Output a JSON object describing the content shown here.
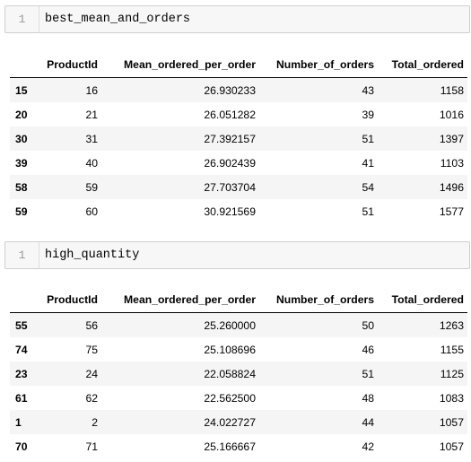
{
  "cells": [
    {
      "line_number": "1",
      "code": "best_mean_and_orders",
      "table": {
        "columns": [
          "",
          "ProductId",
          "Mean_ordered_per_order",
          "Number_of_orders",
          "Total_ordered"
        ],
        "rows": [
          {
            "index": "15",
            "values": [
              "16",
              "26.930233",
              "43",
              "1158"
            ]
          },
          {
            "index": "20",
            "values": [
              "21",
              "26.051282",
              "39",
              "1016"
            ]
          },
          {
            "index": "30",
            "values": [
              "31",
              "27.392157",
              "51",
              "1397"
            ]
          },
          {
            "index": "39",
            "values": [
              "40",
              "26.902439",
              "41",
              "1103"
            ]
          },
          {
            "index": "58",
            "values": [
              "59",
              "27.703704",
              "54",
              "1496"
            ]
          },
          {
            "index": "59",
            "values": [
              "60",
              "30.921569",
              "51",
              "1577"
            ]
          }
        ]
      }
    },
    {
      "line_number": "1",
      "code": "high_quantity",
      "table": {
        "columns": [
          "",
          "ProductId",
          "Mean_ordered_per_order",
          "Number_of_orders",
          "Total_ordered"
        ],
        "rows": [
          {
            "index": "55",
            "values": [
              "56",
              "25.260000",
              "50",
              "1263"
            ]
          },
          {
            "index": "74",
            "values": [
              "75",
              "25.108696",
              "46",
              "1155"
            ]
          },
          {
            "index": "23",
            "values": [
              "24",
              "22.058824",
              "51",
              "1125"
            ]
          },
          {
            "index": "61",
            "values": [
              "62",
              "22.562500",
              "48",
              "1083"
            ]
          },
          {
            "index": "1",
            "values": [
              "2",
              "24.022727",
              "44",
              "1057"
            ]
          },
          {
            "index": "70",
            "values": [
              "71",
              "25.166667",
              "42",
              "1057"
            ]
          }
        ]
      }
    }
  ]
}
